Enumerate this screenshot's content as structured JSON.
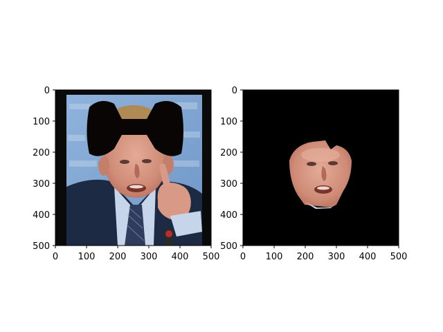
{
  "figure": {
    "background": "#ffffff",
    "panels": [
      {
        "name": "left-panel",
        "content": "portrait of a man in a suit pointing at the viewer, with a black bow-tie shaped mask covering the upper part of his head",
        "xlim": [
          0,
          500
        ],
        "ylim": [
          500,
          0
        ],
        "x_ticks": [
          "0",
          "100",
          "200",
          "300",
          "400",
          "500"
        ],
        "y_ticks": [
          "0",
          "100",
          "200",
          "300",
          "400",
          "500"
        ],
        "colors": {
          "background_wall": "#7ea6d3",
          "suit": "#1c2a44",
          "skin": "#d89a86",
          "mask": "#0a0505",
          "image_border": "#0a0a0a"
        }
      },
      {
        "name": "right-panel",
        "content": "black image with only the segmented face region of the same man visible",
        "xlim": [
          0,
          500
        ],
        "ylim": [
          500,
          0
        ],
        "x_ticks": [
          "0",
          "100",
          "200",
          "300",
          "400",
          "500"
        ],
        "y_ticks": [
          "0",
          "100",
          "200",
          "300",
          "400",
          "500"
        ],
        "colors": {
          "background": "#000000",
          "skin": "#d89a86"
        }
      }
    ]
  }
}
